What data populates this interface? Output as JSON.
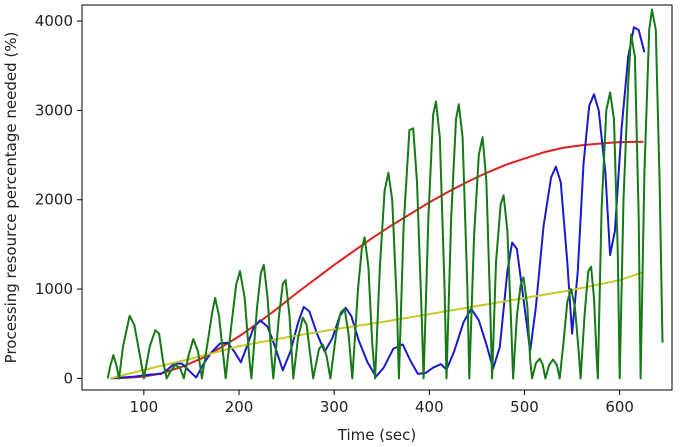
{
  "chart_data": {
    "type": "line",
    "title": "",
    "xlabel": "Time (sec)",
    "ylabel": "Processing resource percentage needed (%)",
    "xlim": [
      35,
      655
    ],
    "ylim": [
      -130,
      4180
    ],
    "x_ticks": [
      100,
      200,
      300,
      400,
      500,
      600
    ],
    "y_ticks": [
      0,
      1000,
      2000,
      3000,
      4000
    ],
    "grid": false,
    "legend": "none",
    "series": [
      {
        "color": "#e02020",
        "points": [
          [
            65,
            0
          ],
          [
            80,
            5
          ],
          [
            100,
            20
          ],
          [
            120,
            60
          ],
          [
            140,
            130
          ],
          [
            160,
            220
          ],
          [
            180,
            340
          ],
          [
            200,
            470
          ],
          [
            220,
            620
          ],
          [
            240,
            780
          ],
          [
            260,
            950
          ],
          [
            280,
            1110
          ],
          [
            300,
            1270
          ],
          [
            320,
            1420
          ],
          [
            340,
            1570
          ],
          [
            360,
            1710
          ],
          [
            380,
            1840
          ],
          [
            400,
            1970
          ],
          [
            420,
            2090
          ],
          [
            440,
            2200
          ],
          [
            460,
            2300
          ],
          [
            480,
            2390
          ],
          [
            500,
            2460
          ],
          [
            520,
            2530
          ],
          [
            540,
            2580
          ],
          [
            560,
            2610
          ],
          [
            580,
            2630
          ],
          [
            600,
            2645
          ],
          [
            625,
            2650
          ]
        ]
      },
      {
        "color": "#1a1acc",
        "points": [
          [
            65,
            0
          ],
          [
            90,
            20
          ],
          [
            105,
            40
          ],
          [
            118,
            50
          ],
          [
            125,
            100
          ],
          [
            132,
            165
          ],
          [
            140,
            165
          ],
          [
            148,
            80
          ],
          [
            155,
            10
          ],
          [
            162,
            150
          ],
          [
            170,
            280
          ],
          [
            180,
            390
          ],
          [
            188,
            400
          ],
          [
            195,
            300
          ],
          [
            202,
            180
          ],
          [
            208,
            350
          ],
          [
            215,
            560
          ],
          [
            222,
            650
          ],
          [
            230,
            580
          ],
          [
            238,
            350
          ],
          [
            246,
            90
          ],
          [
            254,
            300
          ],
          [
            262,
            620
          ],
          [
            268,
            800
          ],
          [
            274,
            750
          ],
          [
            282,
            500
          ],
          [
            290,
            300
          ],
          [
            298,
            450
          ],
          [
            306,
            700
          ],
          [
            312,
            790
          ],
          [
            318,
            700
          ],
          [
            326,
            420
          ],
          [
            335,
            180
          ],
          [
            344,
            20
          ],
          [
            352,
            120
          ],
          [
            362,
            330
          ],
          [
            372,
            380
          ],
          [
            380,
            200
          ],
          [
            388,
            50
          ],
          [
            396,
            60
          ],
          [
            404,
            120
          ],
          [
            412,
            160
          ],
          [
            418,
            100
          ],
          [
            426,
            300
          ],
          [
            436,
            630
          ],
          [
            444,
            780
          ],
          [
            452,
            650
          ],
          [
            460,
            380
          ],
          [
            467,
            110
          ],
          [
            474,
            350
          ],
          [
            482,
            1200
          ],
          [
            487,
            1520
          ],
          [
            492,
            1450
          ],
          [
            500,
            800
          ],
          [
            506,
            310
          ],
          [
            512,
            800
          ],
          [
            520,
            1700
          ],
          [
            528,
            2250
          ],
          [
            533,
            2370
          ],
          [
            538,
            2200
          ],
          [
            545,
            1300
          ],
          [
            550,
            500
          ],
          [
            556,
            1200
          ],
          [
            562,
            2400
          ],
          [
            568,
            3050
          ],
          [
            573,
            3180
          ],
          [
            578,
            3000
          ],
          [
            585,
            2300
          ],
          [
            590,
            1380
          ],
          [
            595,
            1650
          ],
          [
            602,
            2800
          ],
          [
            609,
            3600
          ],
          [
            615,
            3930
          ],
          [
            620,
            3900
          ],
          [
            626,
            3650
          ]
        ]
      },
      {
        "color": "#c8c828",
        "points": [
          [
            65,
            0
          ],
          [
            100,
            95
          ],
          [
            150,
            220
          ],
          [
            200,
            360
          ],
          [
            250,
            460
          ],
          [
            300,
            550
          ],
          [
            350,
            630
          ],
          [
            400,
            720
          ],
          [
            450,
            810
          ],
          [
            500,
            900
          ],
          [
            550,
            990
          ],
          [
            600,
            1100
          ],
          [
            625,
            1190
          ]
        ]
      },
      {
        "color": "#157a15",
        "points": [
          [
            62,
            0
          ],
          [
            65,
            150
          ],
          [
            68,
            260
          ],
          [
            71,
            150
          ],
          [
            74,
            0
          ],
          [
            78,
            350
          ],
          [
            85,
            700
          ],
          [
            90,
            600
          ],
          [
            96,
            250
          ],
          [
            100,
            0
          ],
          [
            106,
            350
          ],
          [
            112,
            540
          ],
          [
            116,
            500
          ],
          [
            120,
            200
          ],
          [
            124,
            0
          ],
          [
            128,
            80
          ],
          [
            133,
            150
          ],
          [
            138,
            120
          ],
          [
            142,
            0
          ],
          [
            147,
            260
          ],
          [
            152,
            440
          ],
          [
            157,
            300
          ],
          [
            161,
            0
          ],
          [
            167,
            400
          ],
          [
            172,
            750
          ],
          [
            175,
            900
          ],
          [
            179,
            700
          ],
          [
            184,
            200
          ],
          [
            186,
            0
          ],
          [
            192,
            600
          ],
          [
            197,
            1050
          ],
          [
            201,
            1200
          ],
          [
            206,
            900
          ],
          [
            211,
            200
          ],
          [
            213,
            0
          ],
          [
            219,
            800
          ],
          [
            223,
            1180
          ],
          [
            226,
            1270
          ],
          [
            230,
            900
          ],
          [
            234,
            250
          ],
          [
            236,
            0
          ],
          [
            242,
            700
          ],
          [
            246,
            1060
          ],
          [
            249,
            1100
          ],
          [
            253,
            700
          ],
          [
            257,
            0
          ],
          [
            262,
            450
          ],
          [
            267,
            680
          ],
          [
            271,
            600
          ],
          [
            275,
            250
          ],
          [
            278,
            0
          ],
          [
            284,
            330
          ],
          [
            288,
            380
          ],
          [
            292,
            250
          ],
          [
            296,
            0
          ],
          [
            302,
            500
          ],
          [
            307,
            740
          ],
          [
            311,
            780
          ],
          [
            315,
            500
          ],
          [
            319,
            0
          ],
          [
            325,
            1000
          ],
          [
            329,
            1450
          ],
          [
            332,
            1580
          ],
          [
            336,
            1250
          ],
          [
            340,
            400
          ],
          [
            343,
            0
          ],
          [
            348,
            1250
          ],
          [
            353,
            2100
          ],
          [
            357,
            2300
          ],
          [
            361,
            2000
          ],
          [
            366,
            800
          ],
          [
            368,
            0
          ],
          [
            373,
            1700
          ],
          [
            379,
            2780
          ],
          [
            383,
            2800
          ],
          [
            387,
            2200
          ],
          [
            392,
            700
          ],
          [
            394,
            0
          ],
          [
            399,
            1800
          ],
          [
            404,
            2950
          ],
          [
            407,
            3100
          ],
          [
            411,
            2700
          ],
          [
            416,
            1000
          ],
          [
            418,
            0
          ],
          [
            423,
            1800
          ],
          [
            428,
            2900
          ],
          [
            431,
            3070
          ],
          [
            435,
            2700
          ],
          [
            440,
            1000
          ],
          [
            442,
            0
          ],
          [
            447,
            1600
          ],
          [
            452,
            2500
          ],
          [
            456,
            2700
          ],
          [
            460,
            2200
          ],
          [
            464,
            800
          ],
          [
            466,
            0
          ],
          [
            470,
            1300
          ],
          [
            475,
            1950
          ],
          [
            478,
            2050
          ],
          [
            482,
            1650
          ],
          [
            486,
            600
          ],
          [
            488,
            0
          ],
          [
            492,
            700
          ],
          [
            496,
            1050
          ],
          [
            499,
            1130
          ],
          [
            503,
            800
          ],
          [
            506,
            200
          ],
          [
            508,
            0
          ],
          [
            512,
            170
          ],
          [
            516,
            220
          ],
          [
            519,
            160
          ],
          [
            522,
            0
          ],
          [
            526,
            150
          ],
          [
            530,
            210
          ],
          [
            534,
            150
          ],
          [
            537,
            0
          ],
          [
            541,
            400
          ],
          [
            545,
            860
          ],
          [
            549,
            1000
          ],
          [
            553,
            800
          ],
          [
            557,
            300
          ],
          [
            559,
            0
          ],
          [
            563,
            700
          ],
          [
            567,
            1200
          ],
          [
            570,
            1250
          ],
          [
            573,
            900
          ],
          [
            576,
            200
          ],
          [
            577,
            0
          ],
          [
            581,
            1900
          ],
          [
            586,
            3000
          ],
          [
            590,
            3200
          ],
          [
            594,
            2900
          ],
          [
            598,
            1400
          ],
          [
            600,
            0
          ],
          [
            604,
            2000
          ],
          [
            609,
            3300
          ],
          [
            612,
            3850
          ],
          [
            616,
            3600
          ],
          [
            620,
            1800
          ],
          [
            622,
            0
          ],
          [
            626,
            2300
          ],
          [
            631,
            3900
          ],
          [
            634,
            4130
          ],
          [
            638,
            3900
          ],
          [
            642,
            2200
          ],
          [
            645,
            400
          ]
        ]
      }
    ]
  }
}
